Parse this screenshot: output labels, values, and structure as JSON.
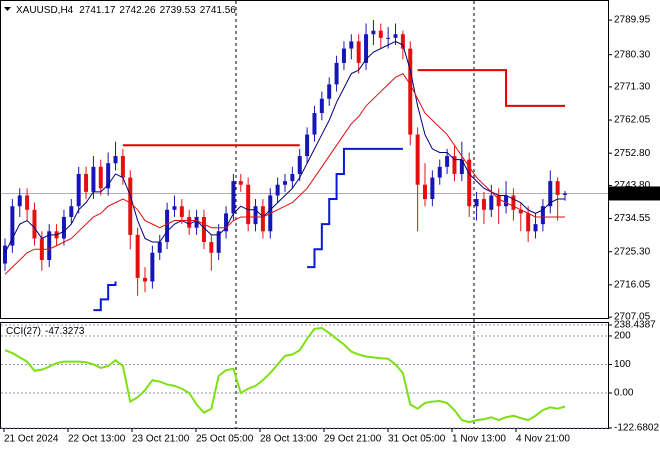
{
  "chart_data": [
    {
      "type": "candlestick",
      "title": "XAUUSD,H4",
      "up_color": "#1515b8",
      "down_color": "#e41010",
      "ylim": [
        2706.8,
        2795.0
      ],
      "yticks": [
        2789.95,
        {
          "value": 2780.3,
          "label": "2780.30"
        },
        {
          "value": 2771.3,
          "label": "2771.30"
        },
        2762.05,
        {
          "value": 2752.8,
          "label": "2752.80"
        },
        {
          "value": 2743.8,
          "label": "2743.80"
        },
        2734.55,
        {
          "value": 2725.3,
          "label": "2725.30"
        },
        2716.05,
        2707.05
      ],
      "xtick_labels": [
        "21 Oct 2024",
        "22 Oct 13:00",
        "23 Oct 21:00",
        "25 Oct 05:00",
        "28 Oct 13:00",
        "29 Oct 21:00",
        "31 Oct 05:00",
        "1 Nov 13:00",
        "4 Nov 21:00"
      ],
      "open": [
        2722,
        2727,
        2738,
        2741,
        2737,
        2729,
        2723,
        2731,
        2729,
        2735,
        2738,
        2747,
        2742,
        2749,
        2743,
        2750,
        2752,
        2746,
        2730,
        2718,
        2717,
        2725,
        2728,
        2737,
        2738,
        2735,
        2732,
        2735,
        2728,
        2725,
        2731,
        2736,
        2745,
        2744,
        2733,
        2738,
        2731,
        2741,
        2744,
        2745,
        2747,
        2752,
        2758,
        2764,
        2768,
        2772,
        2778,
        2782,
        2784,
        2778,
        2786,
        2787,
        2785,
        2785,
        2786,
        2782,
        2758,
        2744,
        2740,
        2746,
        2749,
        2752,
        2747,
        2751,
        2738,
        2740,
        2737,
        2741,
        2738,
        2741,
        2737,
        2736,
        2731,
        2733,
        2738,
        2745,
        2741.17
      ],
      "high": [
        2729,
        2740,
        2743,
        2743,
        2739,
        2731,
        2733,
        2733,
        2737,
        2740,
        2749,
        2749,
        2752,
        2751,
        2753,
        2756,
        2754,
        2748,
        2732,
        2721,
        2727,
        2730,
        2739,
        2741,
        2740,
        2737,
        2737,
        2737,
        2730,
        2733,
        2738,
        2747,
        2747,
        2746,
        2740,
        2740,
        2743,
        2746,
        2747,
        2749,
        2754,
        2760,
        2766,
        2770,
        2774,
        2780,
        2784,
        2786,
        2786,
        2789,
        2790,
        2789,
        2788,
        2789,
        2787,
        2784,
        2760,
        2750,
        2748,
        2751,
        2754,
        2755,
        2756,
        2753,
        2742,
        2742,
        2744,
        2743,
        2745,
        2743,
        2739,
        2738,
        2736,
        2740,
        2748,
        2746,
        2742.26
      ],
      "low": [
        2720,
        2725,
        2735,
        2734,
        2727,
        2720,
        2721,
        2727,
        2727,
        2733,
        2736,
        2740,
        2740,
        2741,
        2741,
        2748,
        2744,
        2726,
        2713,
        2714,
        2715,
        2723,
        2726,
        2735,
        2733,
        2730,
        2730,
        2726,
        2720,
        2723,
        2729,
        2734,
        2742,
        2731,
        2731,
        2729,
        2729,
        2739,
        2742,
        2743,
        2745,
        2750,
        2756,
        2762,
        2766,
        2770,
        2776,
        2779,
        2775,
        2776,
        2783,
        2782,
        2782,
        2783,
        2779,
        2755,
        2731,
        2738,
        2738,
        2744,
        2747,
        2745,
        2745,
        2735,
        2734,
        2733,
        2735,
        2733,
        2736,
        2734,
        2731,
        2728,
        2729,
        2731,
        2736,
        2734,
        2739.53
      ],
      "close": [
        2727,
        2738,
        2741,
        2737,
        2729,
        2723,
        2731,
        2729,
        2735,
        2738,
        2747,
        2742,
        2749,
        2743,
        2750,
        2752,
        2746,
        2730,
        2718,
        2717,
        2725,
        2728,
        2737,
        2738,
        2735,
        2732,
        2735,
        2728,
        2725,
        2731,
        2736,
        2745,
        2744,
        2733,
        2738,
        2731,
        2741,
        2744,
        2745,
        2747,
        2752,
        2758,
        2764,
        2768,
        2772,
        2778,
        2782,
        2784,
        2778,
        2786,
        2787,
        2785,
        2785,
        2786,
        2782,
        2758,
        2744,
        2740,
        2746,
        2749,
        2752,
        2747,
        2751,
        2738,
        2740,
        2737,
        2741,
        2738,
        2741,
        2737,
        2736,
        2731,
        2733,
        2738,
        2745,
        2741.17,
        2741.56
      ],
      "lines": [
        {
          "color": "#000080",
          "style": "line",
          "values": [
            2725,
            2729,
            2733,
            2734,
            2732,
            2729,
            2730,
            2730,
            2731,
            2733,
            2737,
            2739,
            2742,
            2742,
            2744,
            2747,
            2746,
            2741,
            2734,
            2729,
            2728,
            2728,
            2731,
            2733,
            2734,
            2733,
            2734,
            2732,
            2730,
            2730,
            2732,
            2736,
            2738,
            2737,
            2737,
            2735,
            2737,
            2739,
            2741,
            2743,
            2746,
            2750,
            2754,
            2758,
            2762,
            2767,
            2771,
            2775,
            2776,
            2779,
            2781,
            2782,
            2783,
            2784,
            2783,
            2776,
            2766,
            2758,
            2754,
            2753,
            2753,
            2751,
            2751,
            2747,
            2745,
            2743,
            2742,
            2741,
            2741,
            2740,
            2739,
            2737,
            2736,
            2737,
            2739,
            2740,
            2740
          ]
        },
        {
          "color": "#dd1010",
          "style": "line",
          "values": [
            2719,
            2721,
            2723,
            2725,
            2726,
            2726,
            2726,
            2727,
            2728,
            2729,
            2731,
            2733,
            2735,
            2736,
            2738,
            2739,
            2740,
            2739,
            2737,
            2734,
            2733,
            2732,
            2733,
            2734,
            2734,
            2734,
            2734,
            2733,
            2732,
            2732,
            2732,
            2734,
            2735,
            2735,
            2735,
            2735,
            2736,
            2737,
            2738,
            2739,
            2741,
            2743,
            2746,
            2749,
            2752,
            2755,
            2758,
            2761,
            2763,
            2766,
            2768,
            2770,
            2772,
            2774,
            2775,
            2772,
            2768,
            2764,
            2762,
            2760,
            2758,
            2755,
            2752,
            2749,
            2746,
            2744,
            2742,
            2740,
            2739,
            2738,
            2737,
            2736,
            2735,
            2735,
            2735,
            2735,
            2735
          ]
        },
        {
          "color": "#0a1ad0",
          "style": "step",
          "values": [
            null,
            null,
            null,
            null,
            null,
            null,
            null,
            null,
            null,
            null,
            null,
            null,
            2709,
            2712,
            2716,
            2717,
            null,
            null,
            null,
            null,
            null,
            null,
            null,
            null,
            null,
            null,
            null,
            null,
            null,
            null,
            null,
            null,
            null,
            null,
            null,
            null,
            null,
            null,
            null,
            null,
            null,
            2721,
            2726,
            2733,
            2740,
            2747,
            2754,
            2754,
            2754,
            2754,
            2754,
            2754,
            2754,
            2754,
            2754,
            null,
            null,
            null,
            null,
            null,
            null,
            null,
            null,
            null,
            null,
            null,
            null,
            null,
            null,
            null,
            null,
            null,
            null,
            null,
            null,
            null,
            null
          ]
        },
        {
          "color": "#e00000",
          "style": "step",
          "values": [
            null,
            null,
            null,
            null,
            null,
            null,
            null,
            null,
            null,
            null,
            null,
            null,
            null,
            null,
            null,
            null,
            2755,
            2755,
            2755,
            2755,
            2755,
            2755,
            2755,
            2755,
            2755,
            2755,
            2755,
            2755,
            2755,
            2755,
            2755,
            2755,
            2755,
            2755,
            2755,
            2755,
            2755,
            2755,
            2755,
            2755,
            2755,
            null,
            null,
            null,
            null,
            null,
            null,
            null,
            null,
            null,
            null,
            null,
            null,
            null,
            null,
            null,
            2776,
            2776,
            2776,
            2776,
            2776,
            2776,
            2776,
            2776,
            2776,
            2776,
            2776,
            2776,
            2766,
            2766,
            2766,
            2766,
            2766,
            2766,
            2766,
            2766,
            2766
          ]
        }
      ]
    },
    {
      "type": "line",
      "title": "CCI(27)",
      "color": "#7ee012",
      "ylim": [
        -122.6802,
        238.4387
      ],
      "yticks": [
        238.4387,
        200,
        100,
        {
          "value": 0,
          "label": "0.00"
        },
        -122.6802
      ],
      "values": [
        150,
        140,
        125,
        110,
        78,
        82,
        92,
        105,
        110,
        110,
        110,
        108,
        100,
        88,
        95,
        115,
        95,
        -30,
        -15,
        10,
        45,
        40,
        30,
        25,
        15,
        0,
        -40,
        -69,
        -55,
        60,
        80,
        85,
        0,
        15,
        25,
        45,
        70,
        100,
        130,
        135,
        150,
        190,
        225,
        228,
        210,
        190,
        170,
        145,
        135,
        128,
        125,
        122,
        120,
        100,
        70,
        -40,
        -55,
        -35,
        -30,
        -28,
        -35,
        -60,
        -95,
        -102,
        -95,
        -92,
        -85,
        -95,
        -85,
        -80,
        -88,
        -95,
        -80,
        -60,
        -50,
        -55,
        -47.3273
      ]
    }
  ]
}
